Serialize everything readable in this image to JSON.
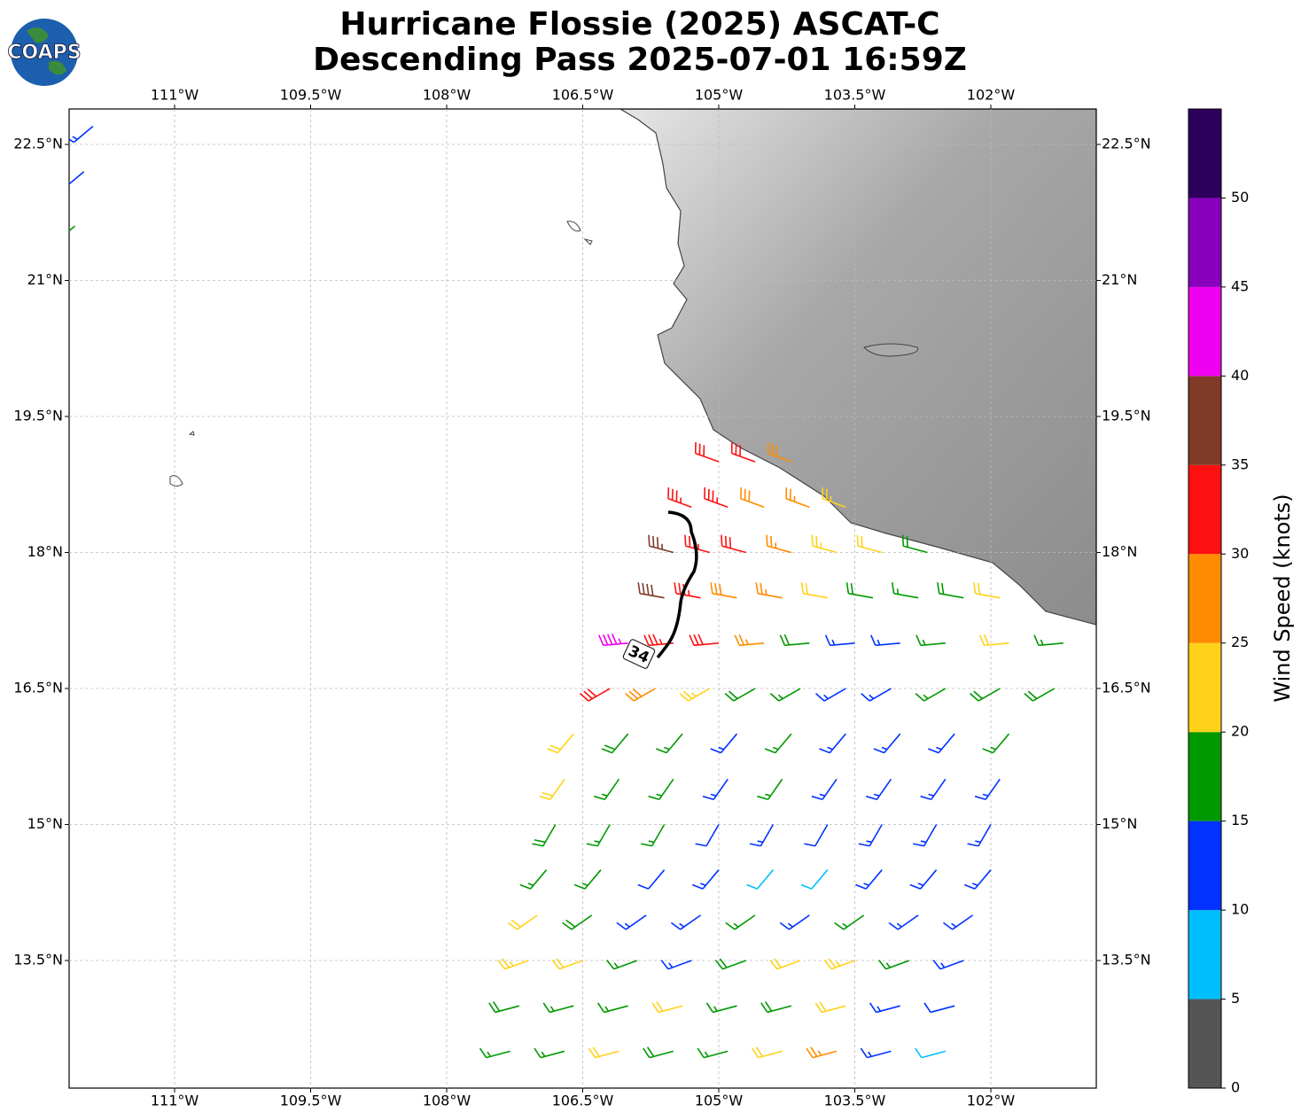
{
  "logo": "COAPS",
  "chart_data": {
    "type": "map",
    "title": "Hurricane Flossie (2025) ASCAT-C",
    "subtitle": "Descending Pass 2025-07-01 16:59Z",
    "xlim": [
      -112.163,
      -100.837
    ],
    "ylim": [
      12.093,
      22.891
    ],
    "grid": true,
    "xticks": [
      {
        "value": -111,
        "label": "111°W"
      },
      {
        "value": -109.5,
        "label": "109.5°W"
      },
      {
        "value": -108,
        "label": "108°W"
      },
      {
        "value": -106.5,
        "label": "106.5°W"
      },
      {
        "value": -105,
        "label": "105°W"
      },
      {
        "value": -103.5,
        "label": "103.5°W"
      },
      {
        "value": -102,
        "label": "102°W"
      }
    ],
    "yticks": [
      {
        "value": 22.5,
        "label": "22.5°N"
      },
      {
        "value": 21,
        "label": "21°N"
      },
      {
        "value": 19.5,
        "label": "19.5°N"
      },
      {
        "value": 18,
        "label": "18°N"
      },
      {
        "value": 16.5,
        "label": "16.5°N"
      },
      {
        "value": 15,
        "label": "15°N"
      },
      {
        "value": 13.5,
        "label": "13.5°N"
      }
    ],
    "contour_label": "34",
    "colorbar": {
      "label": "Wind Speed (knots)",
      "bounds": [
        0,
        5,
        10,
        15,
        20,
        25,
        30,
        35,
        40,
        45,
        50,
        55
      ],
      "colors": [
        "#555555",
        "#00bfff",
        "#0033ff",
        "#009900",
        "#ffd21a",
        "#ff8c00",
        "#ff1010",
        "#7f3a28",
        "#f000f0",
        "#8800bb",
        "#2d005e"
      ],
      "ticks": [
        0,
        5,
        10,
        15,
        20,
        25,
        30,
        35,
        40,
        45,
        50
      ]
    },
    "barbs": {
      "lon": [
        -105.0,
        -104.6,
        -104.2,
        -105.3,
        -104.9,
        -104.5,
        -104.0,
        -103.6,
        -105.5,
        -105.1,
        -104.7,
        -104.2,
        -103.7,
        -103.2,
        -102.7,
        -105.6,
        -105.2,
        -104.8,
        -104.3,
        -103.8,
        -103.3,
        -102.8,
        -102.3,
        -101.9,
        -106.0,
        -105.5,
        -105.0,
        -104.5,
        -104.0,
        -103.5,
        -103.0,
        -102.5,
        -101.8,
        -101.2,
        -106.2,
        -105.7,
        -105.1,
        -104.6,
        -104.1,
        -103.6,
        -103.1,
        -102.5,
        -101.9,
        -101.3,
        -106.6,
        -106.0,
        -105.4,
        -104.8,
        -104.2,
        -103.6,
        -103.0,
        -102.4,
        -101.8,
        -106.7,
        -106.1,
        -105.5,
        -104.9,
        -104.3,
        -103.7,
        -103.1,
        -102.5,
        -101.9,
        -106.8,
        -106.2,
        -105.6,
        -105.0,
        -104.4,
        -103.8,
        -103.2,
        -102.6,
        -102.0,
        -106.9,
        -106.3,
        -105.6,
        -105.0,
        -104.4,
        -103.8,
        -103.2,
        -102.6,
        -102.0,
        -107.0,
        -106.4,
        -105.8,
        -105.2,
        -104.6,
        -104.0,
        -103.4,
        -102.8,
        -102.2,
        -107.1,
        -106.5,
        -105.9,
        -105.3,
        -104.7,
        -104.1,
        -103.5,
        -102.9,
        -102.3,
        -107.2,
        -106.6,
        -106.0,
        -105.4,
        -104.8,
        -104.2,
        -103.6,
        -103.0,
        -102.4,
        -107.3,
        -106.7,
        -106.1,
        -105.5,
        -104.9,
        -104.3,
        -103.7,
        -103.1,
        -102.5,
        -111.9,
        -112.0,
        -112.1
      ],
      "lat": [
        19.0,
        19.0,
        19.0,
        18.5,
        18.5,
        18.5,
        18.5,
        18.5,
        18.0,
        18.0,
        18.0,
        18.0,
        18.0,
        18.0,
        18.0,
        17.5,
        17.5,
        17.5,
        17.5,
        17.5,
        17.5,
        17.5,
        17.5,
        17.5,
        17.0,
        17.0,
        17.0,
        17.0,
        17.0,
        17.0,
        17.0,
        17.0,
        17.0,
        17.0,
        16.5,
        16.5,
        16.5,
        16.5,
        16.5,
        16.5,
        16.5,
        16.5,
        16.5,
        16.5,
        16.0,
        16.0,
        16.0,
        16.0,
        16.0,
        16.0,
        16.0,
        16.0,
        16.0,
        15.5,
        15.5,
        15.5,
        15.5,
        15.5,
        15.5,
        15.5,
        15.5,
        15.5,
        15.0,
        15.0,
        15.0,
        15.0,
        15.0,
        15.0,
        15.0,
        15.0,
        15.0,
        14.5,
        14.5,
        14.5,
        14.5,
        14.5,
        14.5,
        14.5,
        14.5,
        14.5,
        14.0,
        14.0,
        14.0,
        14.0,
        14.0,
        14.0,
        14.0,
        14.0,
        14.0,
        13.5,
        13.5,
        13.5,
        13.5,
        13.5,
        13.5,
        13.5,
        13.5,
        13.5,
        13.0,
        13.0,
        13.0,
        13.0,
        13.0,
        13.0,
        13.0,
        13.0,
        13.0,
        12.5,
        12.5,
        12.5,
        12.5,
        12.5,
        12.5,
        12.5,
        12.5,
        12.5,
        22.7,
        22.2,
        21.6
      ],
      "speed": [
        30,
        30,
        28,
        33,
        33,
        28,
        26,
        23,
        37,
        33,
        31,
        27,
        23,
        22,
        18,
        38,
        33,
        29,
        25,
        22,
        18,
        17,
        18,
        22,
        43,
        33,
        31,
        26,
        19,
        13,
        14,
        16,
        22,
        17,
        32,
        28,
        24,
        18,
        16,
        13,
        13,
        15,
        18,
        18,
        22,
        18,
        17,
        14,
        16,
        13,
        14,
        13,
        17,
        22,
        17,
        17,
        13,
        17,
        13,
        14,
        13,
        13,
        18,
        17,
        16,
        12,
        13,
        12,
        13,
        14,
        13,
        17,
        17,
        12,
        14,
        8,
        8,
        13,
        13,
        14,
        22,
        18,
        13,
        14,
        16,
        13,
        17,
        13,
        13,
        23,
        22,
        17,
        14,
        18,
        22,
        23,
        17,
        13,
        18,
        17,
        17,
        22,
        17,
        18,
        22,
        13,
        12,
        17,
        17,
        22,
        18,
        17,
        22,
        27,
        13,
        8,
        13,
        13,
        16
      ],
      "direction": [
        290,
        290,
        290,
        290,
        290,
        290,
        290,
        290,
        285,
        285,
        285,
        285,
        285,
        285,
        285,
        280,
        280,
        280,
        280,
        280,
        280,
        280,
        280,
        280,
        265,
        265,
        265,
        265,
        265,
        265,
        265,
        265,
        265,
        265,
        240,
        240,
        240,
        240,
        240,
        240,
        240,
        240,
        240,
        240,
        220,
        220,
        220,
        220,
        220,
        220,
        220,
        220,
        220,
        215,
        215,
        215,
        215,
        215,
        215,
        215,
        215,
        215,
        210,
        210,
        210,
        210,
        210,
        210,
        210,
        210,
        210,
        220,
        220,
        220,
        220,
        220,
        220,
        220,
        220,
        220,
        235,
        235,
        235,
        235,
        235,
        235,
        235,
        235,
        235,
        250,
        250,
        250,
        250,
        250,
        250,
        250,
        250,
        250,
        255,
        255,
        255,
        255,
        255,
        255,
        255,
        255,
        255,
        255,
        255,
        255,
        255,
        255,
        255,
        255,
        255,
        255,
        230,
        230,
        230
      ]
    }
  }
}
